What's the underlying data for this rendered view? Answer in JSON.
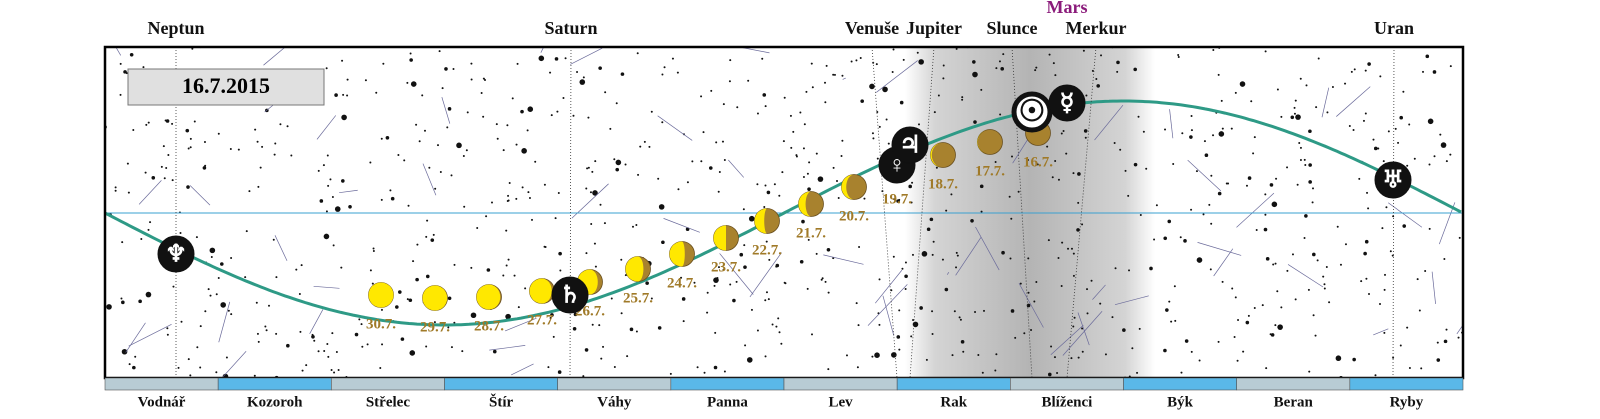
{
  "date": "16.7.2015",
  "planets": [
    {
      "label": "Neptun",
      "symbol": "♆"
    },
    {
      "label": "Saturn",
      "symbol": "♄"
    },
    {
      "label": "Venuše",
      "symbol": "♀"
    },
    {
      "label": "Jupiter",
      "symbol": "♃"
    },
    {
      "label": "Slunce",
      "symbol": "☉"
    },
    {
      "label": "Mars"
    },
    {
      "label": "Merkur",
      "symbol": "☿"
    },
    {
      "label": "Uran",
      "symbol": "♅"
    }
  ],
  "moons": [
    "16.7.",
    "17.7.",
    "18.7.",
    "19.7.",
    "20.7.",
    "21.7.",
    "22.7.",
    "23.7.",
    "24.7.",
    "25.7.",
    "26.7.",
    "27.7.",
    "28.7.",
    "29.7.",
    "30.7."
  ],
  "zodiac": [
    "Vodnář",
    "Kozoroh",
    "Střelec",
    "Štír",
    "Váhy",
    "Panna",
    "Lev",
    "Rak",
    "Blíženci",
    "Býk",
    "Beran",
    "Ryby"
  ]
}
